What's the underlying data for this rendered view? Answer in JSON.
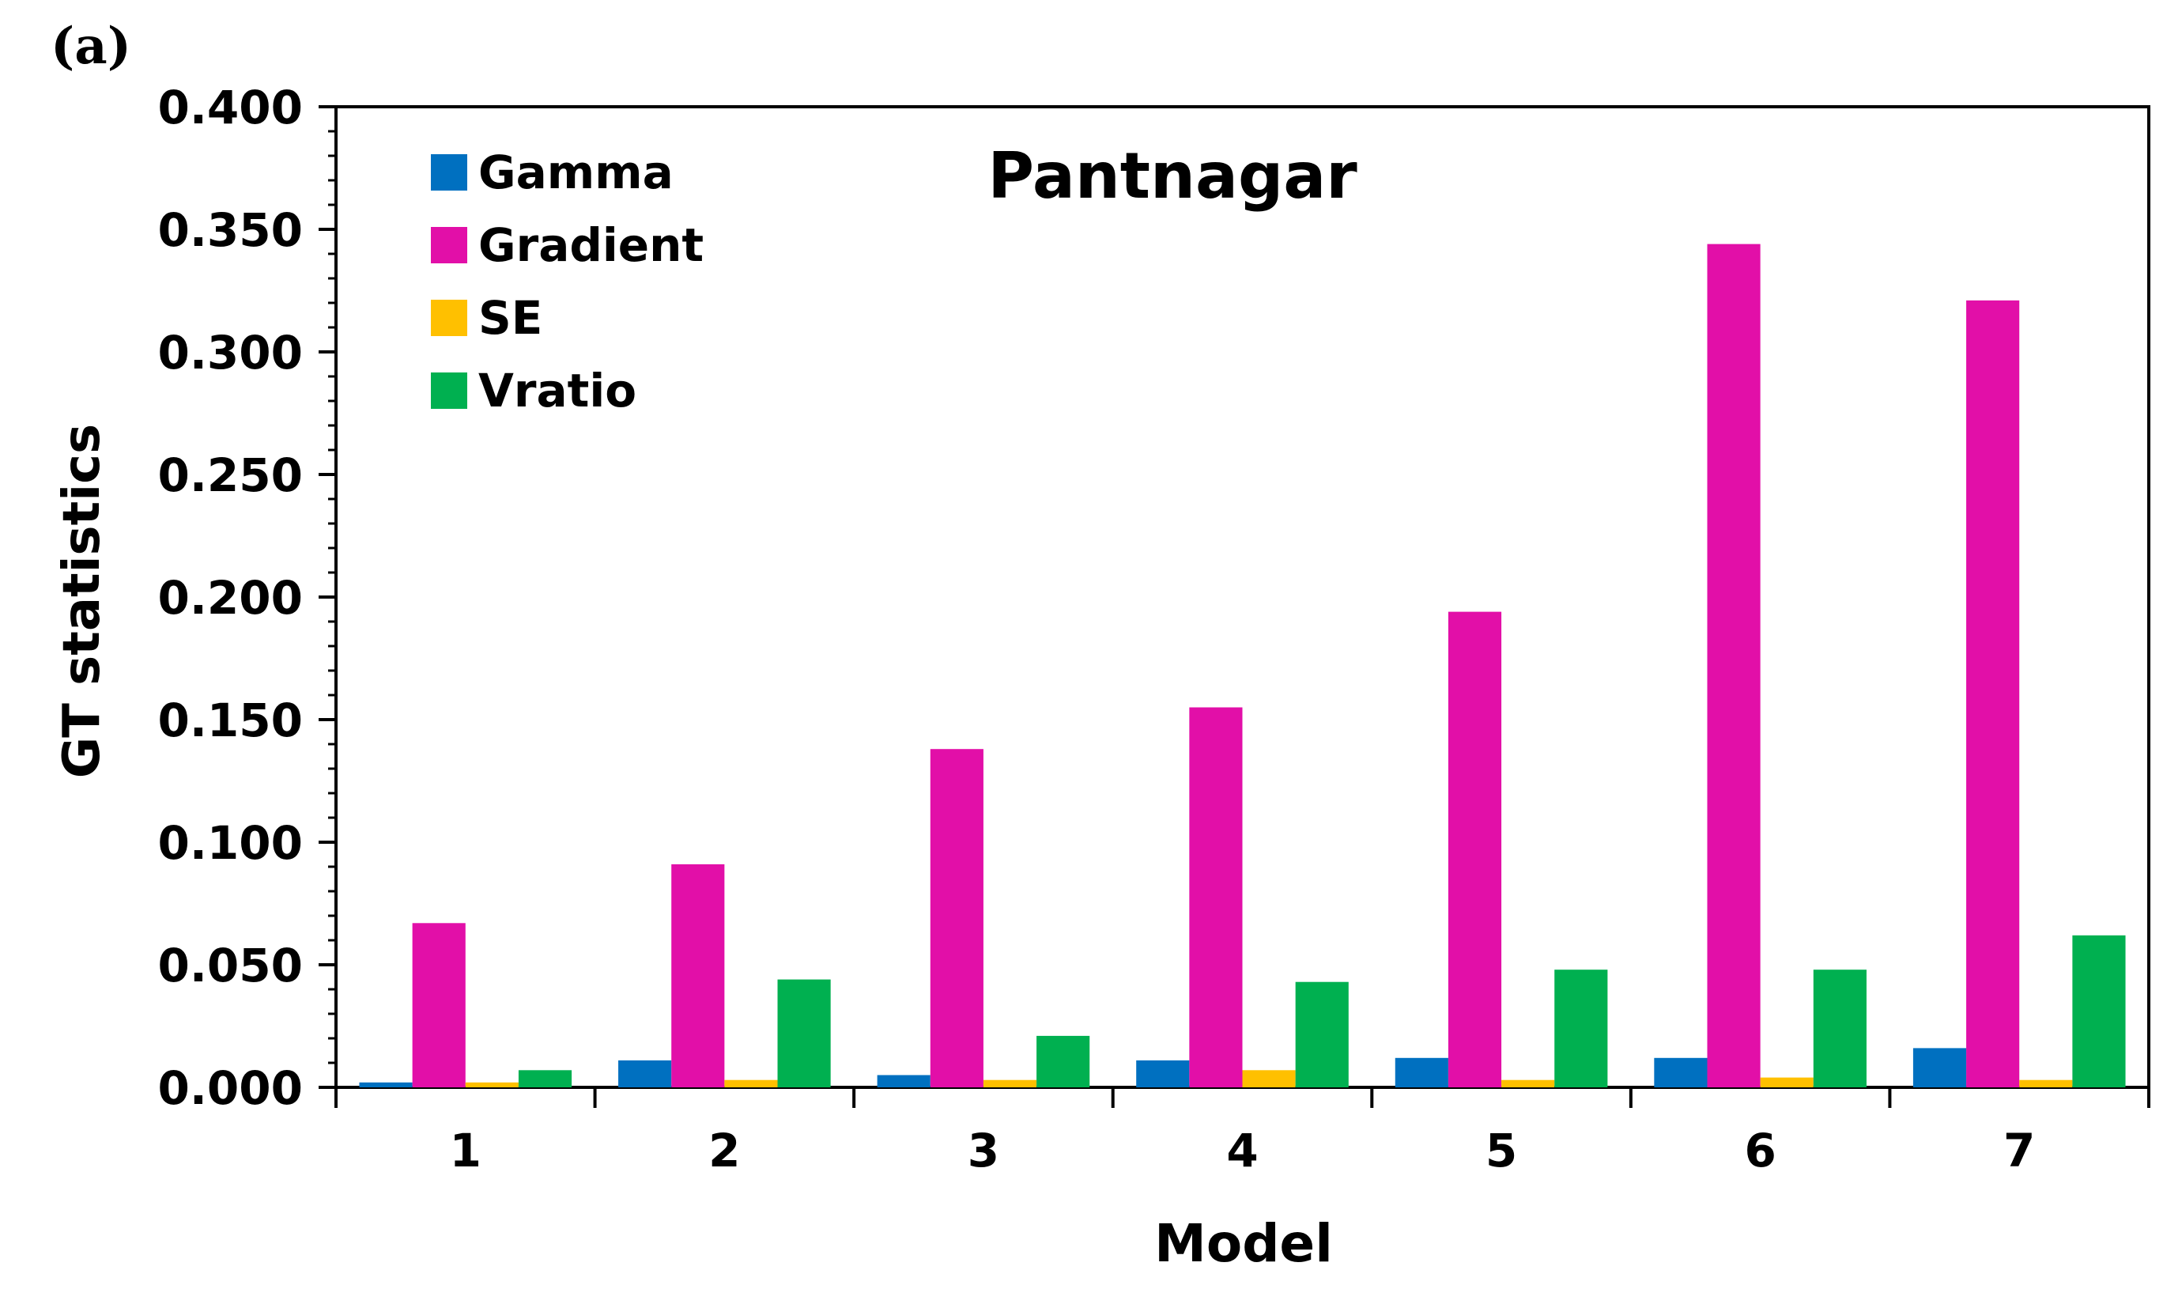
{
  "panel_label": "(a)",
  "chart_data": {
    "type": "bar",
    "title": "Pantnagar",
    "xlabel": "Model",
    "ylabel": "GT statistics",
    "categories": [
      "1",
      "2",
      "3",
      "4",
      "5",
      "6",
      "7"
    ],
    "ylim": [
      0,
      0.4
    ],
    "yticks": [
      "0.000",
      "0.050",
      "0.100",
      "0.150",
      "0.200",
      "0.250",
      "0.300",
      "0.350",
      "0.400"
    ],
    "legend_position": "top-left",
    "series": [
      {
        "name": "Gamma",
        "color": "#0070C0",
        "values": [
          0.002,
          0.011,
          0.005,
          0.011,
          0.012,
          0.012,
          0.016
        ]
      },
      {
        "name": "Gradient",
        "color": "#E20FA8",
        "values": [
          0.067,
          0.091,
          0.138,
          0.155,
          0.194,
          0.344,
          0.321
        ]
      },
      {
        "name": "SE",
        "color": "#FFC000",
        "values": [
          0.002,
          0.003,
          0.003,
          0.007,
          0.003,
          0.004,
          0.003
        ]
      },
      {
        "name": "Vratio",
        "color": "#00B050",
        "values": [
          0.007,
          0.044,
          0.021,
          0.043,
          0.048,
          0.048,
          0.062
        ]
      }
    ]
  }
}
